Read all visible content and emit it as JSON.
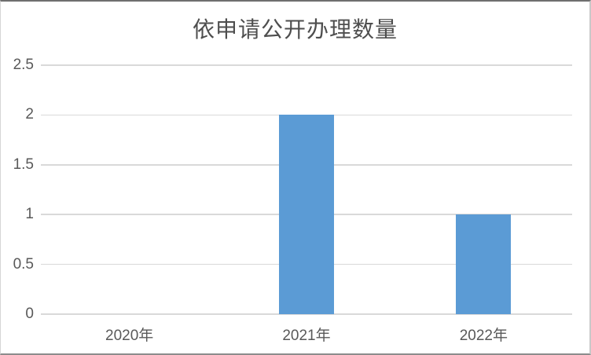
{
  "chart_data": {
    "type": "bar",
    "title": "依申请公开办理数量",
    "categories": [
      "2020年",
      "2021年",
      "2022年"
    ],
    "values": [
      0,
      2,
      1
    ],
    "xlabel": "",
    "ylabel": "",
    "ylim": [
      0,
      2.5
    ],
    "yticks": [
      0,
      0.5,
      1,
      1.5,
      2,
      2.5
    ],
    "ytick_labels": [
      "0",
      "0.5",
      "1",
      "1.5",
      "2",
      "2.5"
    ],
    "grid": "horizontal",
    "legend": "none",
    "colors": {
      "bar": "#5b9bd5",
      "gridline": "#d9d9d9",
      "axis_text": "#595959",
      "title_text": "#4e4e4e",
      "background": "#ffffff"
    }
  }
}
